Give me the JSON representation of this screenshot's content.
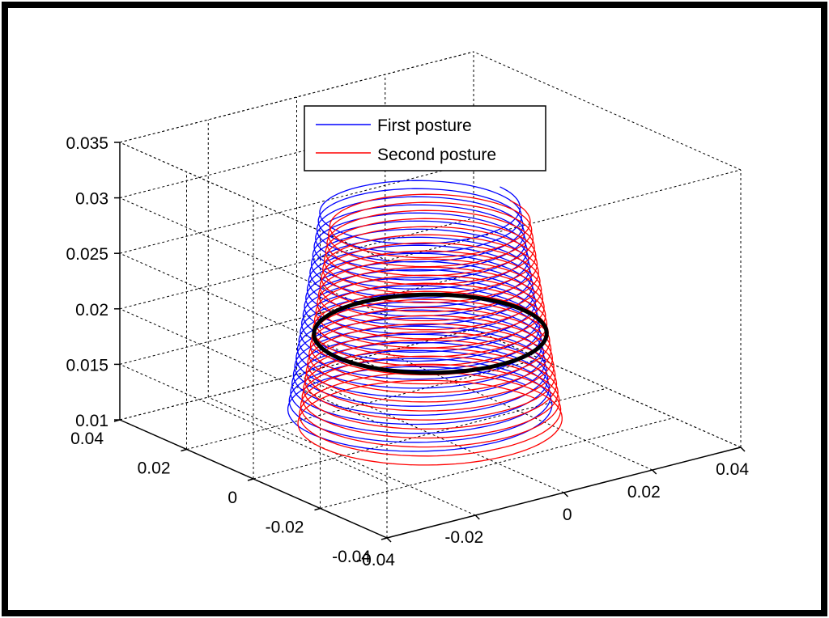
{
  "chart_data": {
    "type": "line",
    "title": "",
    "xlabel": "",
    "ylabel": "",
    "zlabel": "",
    "xlim": [
      -0.04,
      0.04
    ],
    "ylim": [
      -0.04,
      0.04
    ],
    "zlim": [
      0.01,
      0.035
    ],
    "grid": true,
    "box": "full",
    "legend_position": "top-center",
    "x_ticks": [
      "-0.04",
      "-0.02",
      "0",
      "0.02",
      "0.04"
    ],
    "y_ticks": [
      "-0.04",
      "-0.02",
      "0",
      "0.02",
      "0.04"
    ],
    "z_ticks": [
      "0.01",
      "0.015",
      "0.02",
      "0.025",
      "0.03",
      "0.035"
    ],
    "series": [
      {
        "name": "First posture",
        "color": "#0000ff",
        "shape": "helical frustum",
        "center": [
          0.0,
          0.003
        ],
        "radius_bottom": 0.024,
        "radius_top": 0.018,
        "z_start": 0.0115,
        "z_end": 0.03,
        "turns": 24
      },
      {
        "name": "Second posture",
        "color": "#ff0000",
        "shape": "helical frustum",
        "center": [
          -0.003,
          -0.004
        ],
        "radius_bottom": 0.024,
        "radius_top": 0.018,
        "z_start": 0.0115,
        "z_end": 0.03,
        "turns": 24
      },
      {
        "color": "#000000",
        "shape": "circle",
        "center": [
          0.0,
          0.0
        ],
        "radius": 0.021,
        "z": 0.019
      }
    ]
  }
}
